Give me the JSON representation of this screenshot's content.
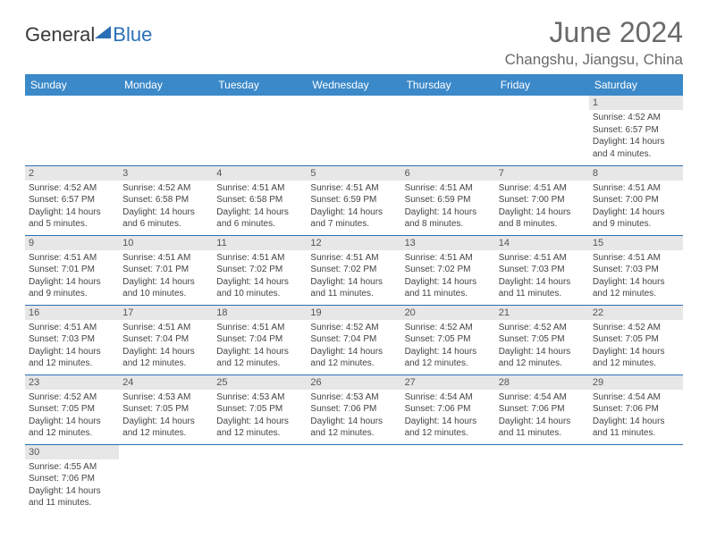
{
  "logo": {
    "part1": "General",
    "part2": "Blue"
  },
  "title": "June 2024",
  "location": "Changshu, Jiangsu, China",
  "colors": {
    "header_bg": "#3b89c9",
    "header_text": "#ffffff",
    "row_divider": "#2a6fb5",
    "daynum_bg": "#e7e7e7",
    "logo_accent": "#2a6fb5",
    "title_color": "#6a6a6a"
  },
  "weekdays": [
    "Sunday",
    "Monday",
    "Tuesday",
    "Wednesday",
    "Thursday",
    "Friday",
    "Saturday"
  ],
  "weeks": [
    [
      {
        "n": "",
        "sr": "",
        "ss": "",
        "dl": ""
      },
      {
        "n": "",
        "sr": "",
        "ss": "",
        "dl": ""
      },
      {
        "n": "",
        "sr": "",
        "ss": "",
        "dl": ""
      },
      {
        "n": "",
        "sr": "",
        "ss": "",
        "dl": ""
      },
      {
        "n": "",
        "sr": "",
        "ss": "",
        "dl": ""
      },
      {
        "n": "",
        "sr": "",
        "ss": "",
        "dl": ""
      },
      {
        "n": "1",
        "sr": "Sunrise: 4:52 AM",
        "ss": "Sunset: 6:57 PM",
        "dl": "Daylight: 14 hours and 4 minutes."
      }
    ],
    [
      {
        "n": "2",
        "sr": "Sunrise: 4:52 AM",
        "ss": "Sunset: 6:57 PM",
        "dl": "Daylight: 14 hours and 5 minutes."
      },
      {
        "n": "3",
        "sr": "Sunrise: 4:52 AM",
        "ss": "Sunset: 6:58 PM",
        "dl": "Daylight: 14 hours and 6 minutes."
      },
      {
        "n": "4",
        "sr": "Sunrise: 4:51 AM",
        "ss": "Sunset: 6:58 PM",
        "dl": "Daylight: 14 hours and 6 minutes."
      },
      {
        "n": "5",
        "sr": "Sunrise: 4:51 AM",
        "ss": "Sunset: 6:59 PM",
        "dl": "Daylight: 14 hours and 7 minutes."
      },
      {
        "n": "6",
        "sr": "Sunrise: 4:51 AM",
        "ss": "Sunset: 6:59 PM",
        "dl": "Daylight: 14 hours and 8 minutes."
      },
      {
        "n": "7",
        "sr": "Sunrise: 4:51 AM",
        "ss": "Sunset: 7:00 PM",
        "dl": "Daylight: 14 hours and 8 minutes."
      },
      {
        "n": "8",
        "sr": "Sunrise: 4:51 AM",
        "ss": "Sunset: 7:00 PM",
        "dl": "Daylight: 14 hours and 9 minutes."
      }
    ],
    [
      {
        "n": "9",
        "sr": "Sunrise: 4:51 AM",
        "ss": "Sunset: 7:01 PM",
        "dl": "Daylight: 14 hours and 9 minutes."
      },
      {
        "n": "10",
        "sr": "Sunrise: 4:51 AM",
        "ss": "Sunset: 7:01 PM",
        "dl": "Daylight: 14 hours and 10 minutes."
      },
      {
        "n": "11",
        "sr": "Sunrise: 4:51 AM",
        "ss": "Sunset: 7:02 PM",
        "dl": "Daylight: 14 hours and 10 minutes."
      },
      {
        "n": "12",
        "sr": "Sunrise: 4:51 AM",
        "ss": "Sunset: 7:02 PM",
        "dl": "Daylight: 14 hours and 11 minutes."
      },
      {
        "n": "13",
        "sr": "Sunrise: 4:51 AM",
        "ss": "Sunset: 7:02 PM",
        "dl": "Daylight: 14 hours and 11 minutes."
      },
      {
        "n": "14",
        "sr": "Sunrise: 4:51 AM",
        "ss": "Sunset: 7:03 PM",
        "dl": "Daylight: 14 hours and 11 minutes."
      },
      {
        "n": "15",
        "sr": "Sunrise: 4:51 AM",
        "ss": "Sunset: 7:03 PM",
        "dl": "Daylight: 14 hours and 12 minutes."
      }
    ],
    [
      {
        "n": "16",
        "sr": "Sunrise: 4:51 AM",
        "ss": "Sunset: 7:03 PM",
        "dl": "Daylight: 14 hours and 12 minutes."
      },
      {
        "n": "17",
        "sr": "Sunrise: 4:51 AM",
        "ss": "Sunset: 7:04 PM",
        "dl": "Daylight: 14 hours and 12 minutes."
      },
      {
        "n": "18",
        "sr": "Sunrise: 4:51 AM",
        "ss": "Sunset: 7:04 PM",
        "dl": "Daylight: 14 hours and 12 minutes."
      },
      {
        "n": "19",
        "sr": "Sunrise: 4:52 AM",
        "ss": "Sunset: 7:04 PM",
        "dl": "Daylight: 14 hours and 12 minutes."
      },
      {
        "n": "20",
        "sr": "Sunrise: 4:52 AM",
        "ss": "Sunset: 7:05 PM",
        "dl": "Daylight: 14 hours and 12 minutes."
      },
      {
        "n": "21",
        "sr": "Sunrise: 4:52 AM",
        "ss": "Sunset: 7:05 PM",
        "dl": "Daylight: 14 hours and 12 minutes."
      },
      {
        "n": "22",
        "sr": "Sunrise: 4:52 AM",
        "ss": "Sunset: 7:05 PM",
        "dl": "Daylight: 14 hours and 12 minutes."
      }
    ],
    [
      {
        "n": "23",
        "sr": "Sunrise: 4:52 AM",
        "ss": "Sunset: 7:05 PM",
        "dl": "Daylight: 14 hours and 12 minutes."
      },
      {
        "n": "24",
        "sr": "Sunrise: 4:53 AM",
        "ss": "Sunset: 7:05 PM",
        "dl": "Daylight: 14 hours and 12 minutes."
      },
      {
        "n": "25",
        "sr": "Sunrise: 4:53 AM",
        "ss": "Sunset: 7:05 PM",
        "dl": "Daylight: 14 hours and 12 minutes."
      },
      {
        "n": "26",
        "sr": "Sunrise: 4:53 AM",
        "ss": "Sunset: 7:06 PM",
        "dl": "Daylight: 14 hours and 12 minutes."
      },
      {
        "n": "27",
        "sr": "Sunrise: 4:54 AM",
        "ss": "Sunset: 7:06 PM",
        "dl": "Daylight: 14 hours and 12 minutes."
      },
      {
        "n": "28",
        "sr": "Sunrise: 4:54 AM",
        "ss": "Sunset: 7:06 PM",
        "dl": "Daylight: 14 hours and 11 minutes."
      },
      {
        "n": "29",
        "sr": "Sunrise: 4:54 AM",
        "ss": "Sunset: 7:06 PM",
        "dl": "Daylight: 14 hours and 11 minutes."
      }
    ],
    [
      {
        "n": "30",
        "sr": "Sunrise: 4:55 AM",
        "ss": "Sunset: 7:06 PM",
        "dl": "Daylight: 14 hours and 11 minutes."
      },
      {
        "n": "",
        "sr": "",
        "ss": "",
        "dl": ""
      },
      {
        "n": "",
        "sr": "",
        "ss": "",
        "dl": ""
      },
      {
        "n": "",
        "sr": "",
        "ss": "",
        "dl": ""
      },
      {
        "n": "",
        "sr": "",
        "ss": "",
        "dl": ""
      },
      {
        "n": "",
        "sr": "",
        "ss": "",
        "dl": ""
      },
      {
        "n": "",
        "sr": "",
        "ss": "",
        "dl": ""
      }
    ]
  ]
}
